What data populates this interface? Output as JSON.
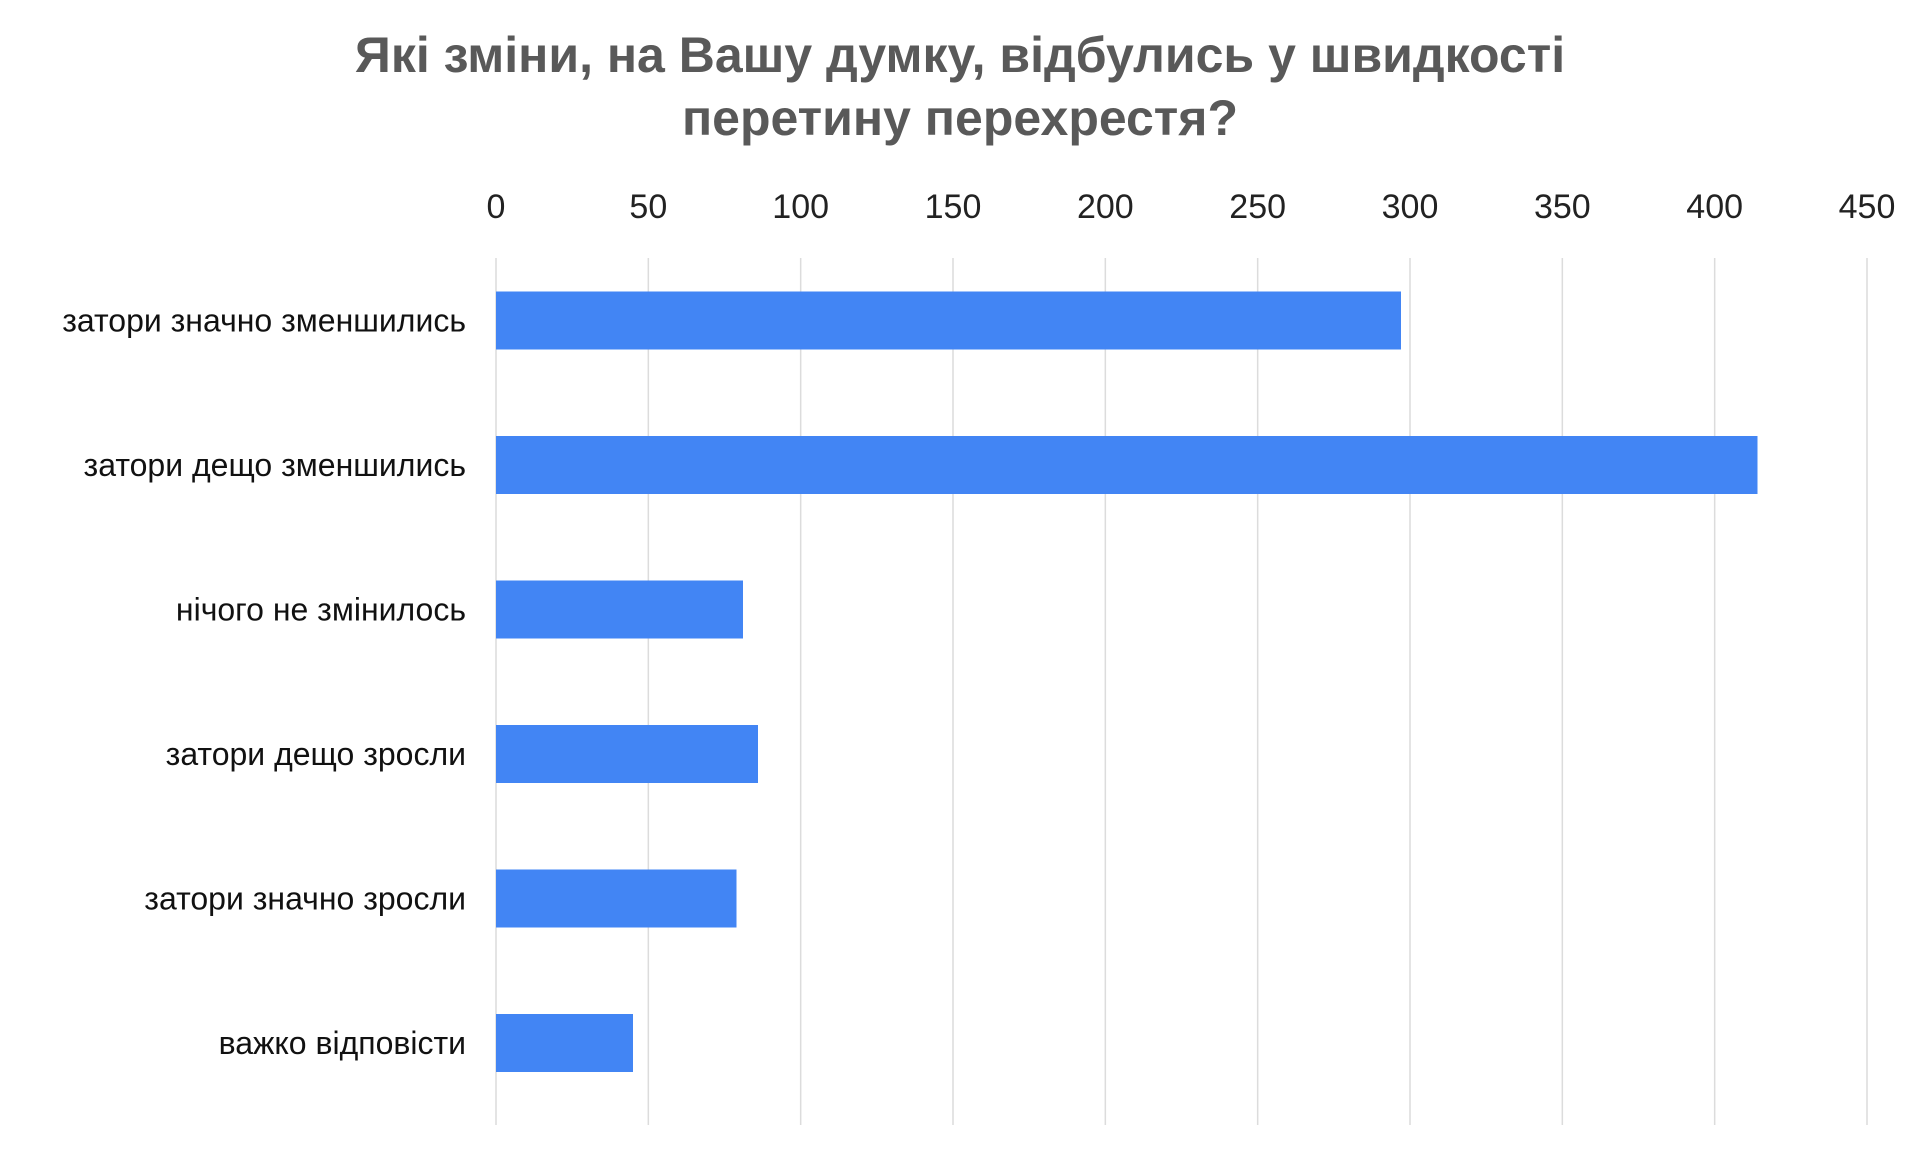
{
  "chart_data": {
    "type": "bar",
    "orientation": "horizontal",
    "title": "Які зміни, на Вашу думку, відбулись у швидкості перетину перехрестя?",
    "title_lines": [
      "Які зміни, на Вашу думку, відбулись у швидкості",
      "перетину перехрестя?"
    ],
    "xlabel": "",
    "ylabel": "",
    "x_axis_position": "top",
    "xlim": [
      0,
      450
    ],
    "ticks": [
      0,
      50,
      100,
      150,
      200,
      250,
      300,
      350,
      400,
      450
    ],
    "grid": true,
    "legend": "none",
    "categories": [
      "затори значно зменшились",
      "затори дещо зменшились",
      "нічого не змінилось",
      "затори дещо зросли",
      "затори значно зросли",
      "важко відповісти"
    ],
    "values": [
      297,
      414,
      81,
      86,
      79,
      45
    ],
    "bar_color": "#4285f4"
  }
}
